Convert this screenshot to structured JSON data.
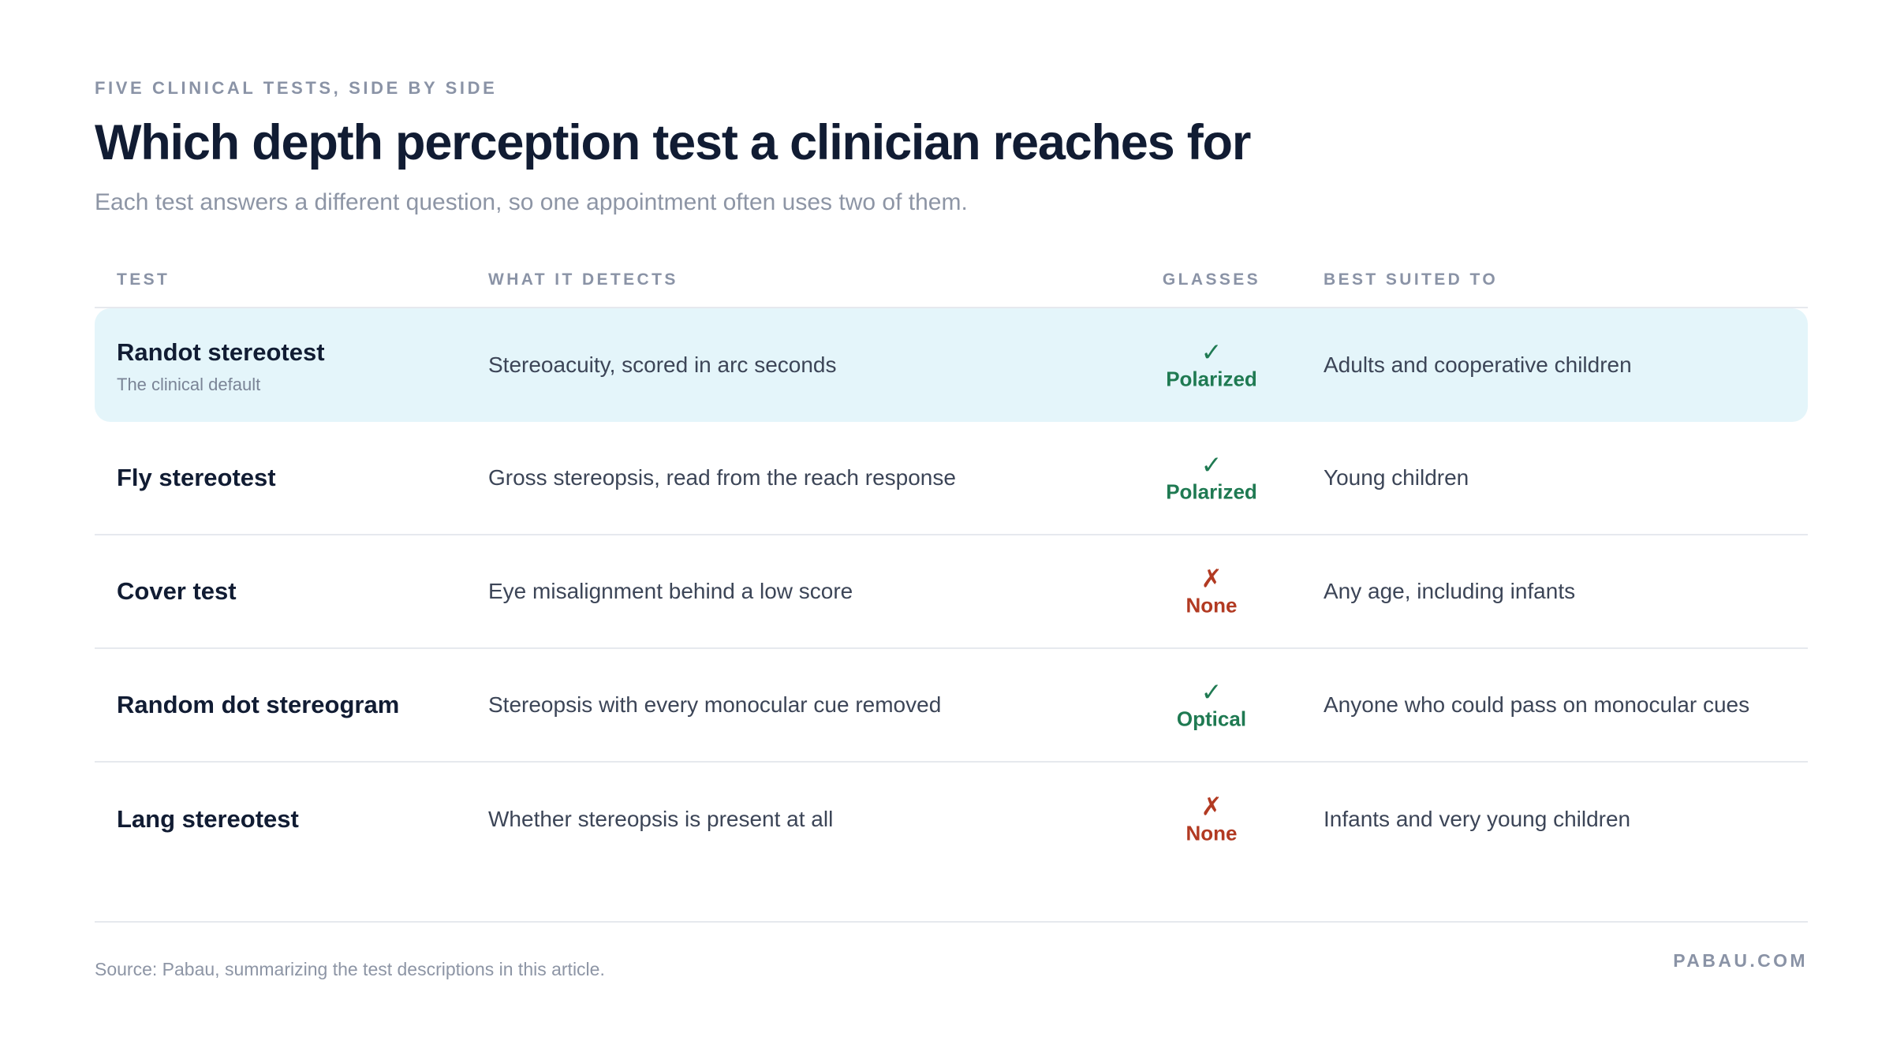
{
  "header": {
    "eyebrow": "FIVE CLINICAL TESTS, SIDE BY SIDE",
    "title": "Which depth perception test a clinician reaches for",
    "subtitle": "Each test answers a different question, so one appointment often uses two of them."
  },
  "table": {
    "columns": [
      "TEST",
      "WHAT IT DETECTS",
      "GLASSES",
      "BEST SUITED TO"
    ],
    "rows": [
      {
        "test": "Randot stereotest",
        "note": "The clinical default",
        "detects": "Stereoacuity, scored in arc seconds",
        "glasses_icon": "check-icon",
        "glasses_mark": "✓",
        "glasses": "Polarized",
        "best_suited": "Adults and cooperative children",
        "highlighted": true
      },
      {
        "test": "Fly stereotest",
        "detects": "Gross stereopsis, read from the reach response",
        "glasses_icon": "check-icon",
        "glasses_mark": "✓",
        "glasses": "Polarized",
        "best_suited": "Young children"
      },
      {
        "test": "Cover test",
        "detects": "Eye misalignment behind a low score",
        "glasses_icon": "cross-icon",
        "glasses_mark": "✗",
        "glasses": "None",
        "best_suited": "Any age, including infants"
      },
      {
        "test": "Random dot stereogram",
        "detects": "Stereopsis with every monocular cue removed",
        "glasses_icon": "check-icon",
        "glasses_mark": "✓",
        "glasses": "Optical",
        "best_suited": "Anyone who could pass on monocular cues"
      },
      {
        "test": "Lang stereotest",
        "detects": "Whether stereopsis is present at all",
        "glasses_icon": "cross-icon",
        "glasses_mark": "✗",
        "glasses": "None",
        "best_suited": "Infants and very young children"
      }
    ]
  },
  "footer": {
    "source": "Source: Pabau, summarizing the test descriptions in this article.",
    "brand": "PABAU.COM"
  },
  "colors": {
    "highlight_row": "#e4f5fa",
    "yes": "#1f7a52",
    "no": "#b23a22",
    "title": "#111c33",
    "muted": "#8a93a6"
  }
}
